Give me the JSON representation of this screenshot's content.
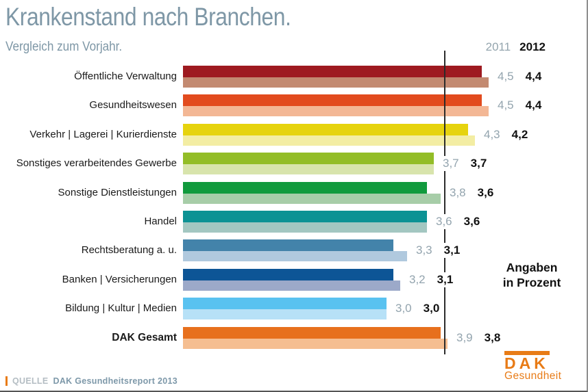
{
  "header": {
    "title": "Krankenstand nach Branchen.",
    "subtitle": "Vergleich zum Vorjahr."
  },
  "legend": {
    "year_2011": "2011",
    "year_2012": "2012"
  },
  "annotation": {
    "line1": "Angaben",
    "line2": "in Prozent"
  },
  "footer": {
    "source_label": "QUELLE",
    "source_text": "DAK Gesundheitsreport 2013"
  },
  "logo": {
    "name": "DAK",
    "subtitle": "Gesundheit",
    "color": "#e87b16"
  },
  "colors": {
    "title": "#7e97a6",
    "gray_value": "#93a4ae",
    "black_value": "#111111",
    "reference_line": "#2a2a2a"
  },
  "chart_data": {
    "type": "bar",
    "orientation": "horizontal",
    "title": "Krankenstand nach Branchen.",
    "subtitle": "Vergleich zum Vorjahr.",
    "unit": "Prozent",
    "note": "Angaben in Prozent",
    "xlim": [
      0,
      4.6
    ],
    "grid": false,
    "legend_position": "top-right",
    "reference_line_value": 3.8,
    "emphasized_category": "DAK Gesamt",
    "categories": [
      "Öffentliche Verwaltung",
      "Gesundheitswesen",
      "Verkehr | Lagerei | Kurierdienste",
      "Sonstiges verarbeitendes Gewerbe",
      "Sonstige Dienstleistungen",
      "Handel",
      "Rechtsberatung a. u.",
      "Banken | Versicherungen",
      "Bildung | Kultur | Medien",
      "DAK Gesamt"
    ],
    "series": [
      {
        "name": "2011",
        "values": [
          4.5,
          4.5,
          4.3,
          3.7,
          3.8,
          3.6,
          3.3,
          3.2,
          3.0,
          3.9
        ],
        "labels": [
          "4,5",
          "4,5",
          "4,3",
          "3,7",
          "3,8",
          "3,6",
          "3,3",
          "3,2",
          "3,0",
          "3,9"
        ],
        "colors": [
          "#c38a71",
          "#f3b795",
          "#f3eda3",
          "#d8e4ac",
          "#a7cda8",
          "#a3c7c1",
          "#b0c9de",
          "#9ca9c9",
          "#b7e1f7",
          "#f5be91"
        ]
      },
      {
        "name": "2012",
        "values": [
          4.4,
          4.4,
          4.2,
          3.7,
          3.6,
          3.6,
          3.1,
          3.1,
          3.0,
          3.8
        ],
        "labels": [
          "4,4",
          "4,4",
          "4,2",
          "3,7",
          "3,6",
          "3,6",
          "3,1",
          "3,1",
          "3,0",
          "3,8"
        ],
        "colors": [
          "#9e1a20",
          "#e24b1e",
          "#e6d30e",
          "#93bd27",
          "#119a3d",
          "#0c9294",
          "#4383aa",
          "#0d5596",
          "#59c2f0",
          "#e7701d"
        ]
      }
    ]
  }
}
